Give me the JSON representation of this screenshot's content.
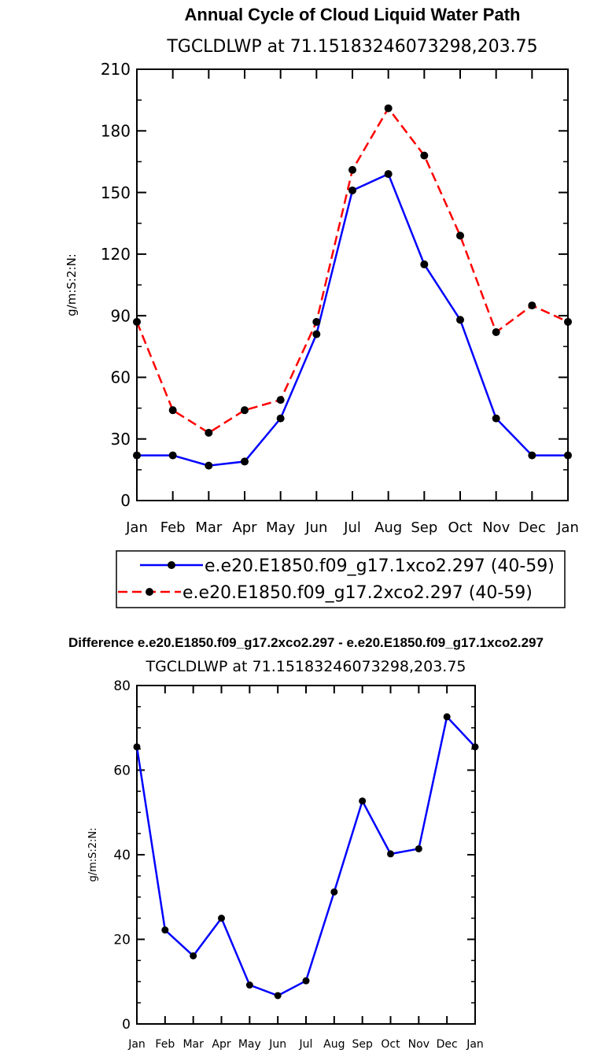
{
  "chart_data": [
    {
      "type": "line",
      "title": "Annual Cycle of Cloud Liquid Water Path",
      "subtitle": "TGCLDLWP  at  71.15183246073298,203.75",
      "xlabel": "",
      "ylabel": "g/m:S:2:N:",
      "categories": [
        "Jan",
        "Feb",
        "Mar",
        "Apr",
        "May",
        "Jun",
        "Jul",
        "Aug",
        "Sep",
        "Oct",
        "Nov",
        "Dec",
        "Jan"
      ],
      "ylim": [
        0,
        210
      ],
      "yticks": [
        "0",
        "30",
        "60",
        "90",
        "120",
        "150",
        "180",
        "210"
      ],
      "series": [
        {
          "name": "e.e20.E1850.f09_g17.1xco2.297 (40-59)",
          "color": "#0000ff",
          "dash": "solid",
          "values": [
            22,
            22,
            17,
            19,
            40,
            81,
            151,
            159,
            115,
            88,
            40,
            22,
            22
          ]
        },
        {
          "name": "e.e20.E1850.f09_g17.2xco2.297 (40-59)",
          "color": "#ff0000",
          "dash": "dashed",
          "values": [
            87,
            44,
            33,
            44,
            49,
            87,
            161,
            191,
            168,
            129,
            82,
            95,
            87
          ]
        }
      ],
      "legend_position": "bottom"
    },
    {
      "type": "line",
      "title": "Difference e.e20.E1850.f09_g17.2xco2.297 - e.e20.E1850.f09_g17.1xco2.297",
      "subtitle": "TGCLDLWP  at  71.15183246073298,203.75",
      "xlabel": "",
      "ylabel": "g/m:S:2:N:",
      "categories": [
        "Jan",
        "Feb",
        "Mar",
        "Apr",
        "May",
        "Jun",
        "Jul",
        "Aug",
        "Sep",
        "Oct",
        "Nov",
        "Dec",
        "Jan"
      ],
      "ylim": [
        0,
        80
      ],
      "yticks": [
        "0",
        "20",
        "40",
        "60",
        "80"
      ],
      "series": [
        {
          "name": "difference",
          "color": "#0000ff",
          "dash": "solid",
          "values": [
            65.5,
            22.2,
            16.1,
            25.0,
            9.2,
            6.7,
            10.2,
            31.2,
            52.7,
            40.2,
            41.4,
            72.6,
            65.5
          ]
        }
      ]
    }
  ]
}
